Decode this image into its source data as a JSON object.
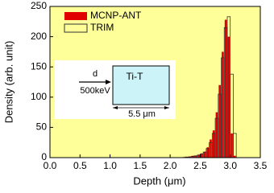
{
  "chart_data": {
    "type": "histogram",
    "x_label": "Depth (μm)",
    "y_label": "Density (arb. unit)",
    "bins": [
      2.2,
      2.25,
      2.3,
      2.35,
      2.4,
      2.45,
      2.5,
      2.55,
      2.6,
      2.65,
      2.7,
      2.75,
      2.8,
      2.85,
      2.9,
      2.95,
      3.0,
      3.05,
      3.1
    ],
    "series": [
      {
        "name": "MCNP-ANT",
        "color": "#e00000",
        "fill": true,
        "values": [
          1,
          1,
          2,
          3,
          3,
          5,
          7,
          10,
          17,
          30,
          45,
          75,
          120,
          175,
          228,
          200,
          40,
          3
        ]
      },
      {
        "name": "TRIM",
        "color": "#333333",
        "fill": false,
        "values": [
          0,
          1,
          1,
          2,
          3,
          4,
          6,
          9,
          15,
          25,
          40,
          65,
          105,
          165,
          215,
          233,
          138,
          40
        ]
      }
    ],
    "xlim": [
      0,
      3.5
    ],
    "xticks": [
      {
        "value": 0,
        "label": "0.0"
      },
      0.5,
      {
        "value": 1,
        "label": "1.0"
      },
      1.5,
      {
        "value": 2,
        "label": "2.0"
      },
      2.5,
      {
        "value": 3,
        "label": "3.0"
      },
      3.5
    ],
    "ylim": [
      0,
      250
    ],
    "yticks": [
      0,
      50,
      100,
      150,
      200,
      250
    ],
    "background": "#ffff99",
    "legend": "upper-left",
    "inset": {
      "beam_label": "d",
      "energy_label": "500keV",
      "target_label": "Ti-T",
      "thickness_label": "5.5 μm"
    }
  }
}
